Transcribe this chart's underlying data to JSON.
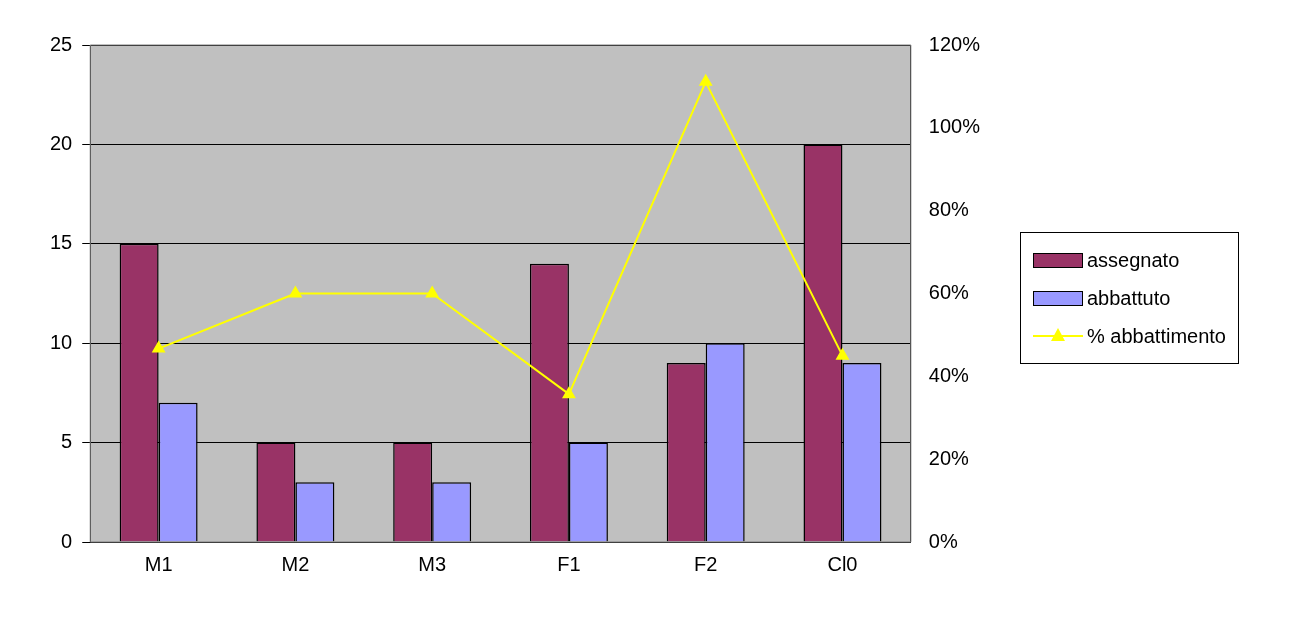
{
  "chart_data": {
    "type": "bar",
    "categories": [
      "M1",
      "M2",
      "M3",
      "F1",
      "F2",
      "Cl0"
    ],
    "series": [
      {
        "name": "assegnato",
        "color": "#993366",
        "values": [
          15,
          5,
          5,
          14,
          9,
          20
        ]
      },
      {
        "name": "abbattuto",
        "color": "#9999ff",
        "values": [
          7,
          3,
          3,
          5,
          10,
          9
        ]
      },
      {
        "name": "% abbattimento",
        "type": "line",
        "axis": "y2",
        "color": "#ffff00",
        "marker": "triangle",
        "values": [
          46.7,
          60,
          60,
          35.7,
          111.1,
          45
        ]
      }
    ],
    "ylim": [
      0,
      25
    ],
    "yticks": [
      0,
      5,
      10,
      15,
      20,
      25
    ],
    "y2lim": [
      0,
      120
    ],
    "y2ticks": [
      {
        "value": 0,
        "label": "0%"
      },
      {
        "value": 20,
        "label": "20%"
      },
      {
        "value": 40,
        "label": "40%"
      },
      {
        "value": 60,
        "label": "60%"
      },
      {
        "value": 80,
        "label": "80%"
      },
      {
        "value": 100,
        "label": "100%"
      },
      {
        "value": 120,
        "label": "120%"
      }
    ],
    "grid": "y",
    "legend": "right"
  }
}
